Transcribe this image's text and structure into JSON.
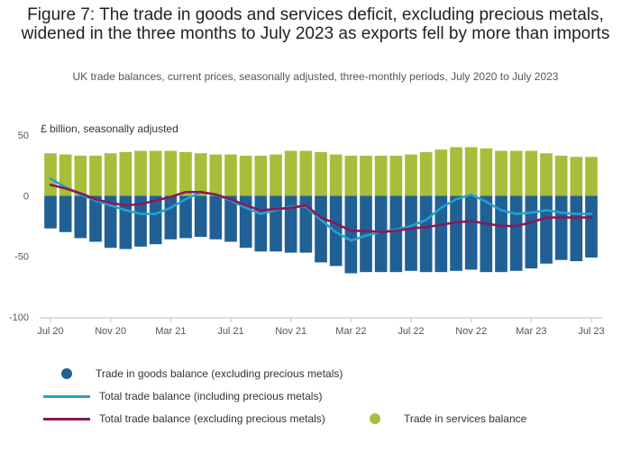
{
  "chart_data": {
    "type": "bar",
    "title": "Figure 7: The trade in goods and services deficit, excluding precious metals, widened in the three months to July 2023 as exports fell by more than imports",
    "subtitle": "UK trade balances, current prices, seasonally adjusted, three-monthly periods, July 2020 to July 2023",
    "ylabel": "£ billion, seasonally adjusted",
    "ylim": [
      -100,
      50
    ],
    "yticks": [
      50,
      0,
      -50,
      -100
    ],
    "x_tick_labels": [
      "Jul 20",
      "Nov 20",
      "Mar 21",
      "Jul 21",
      "Nov 21",
      "Mar 22",
      "Jul 22",
      "Nov 22",
      "Mar 23",
      "Jul 23"
    ],
    "x_tick_positions": [
      0,
      4,
      8,
      12,
      16,
      20,
      24,
      28,
      32,
      36
    ],
    "categories": [
      "Jul 20",
      "Aug 20",
      "Sep 20",
      "Oct 20",
      "Nov 20",
      "Dec 20",
      "Jan 21",
      "Feb 21",
      "Mar 21",
      "Apr 21",
      "May 21",
      "Jun 21",
      "Jul 21",
      "Aug 21",
      "Sep 21",
      "Oct 21",
      "Nov 21",
      "Dec 21",
      "Jan 22",
      "Feb 22",
      "Mar 22",
      "Apr 22",
      "May 22",
      "Jun 22",
      "Jul 22",
      "Aug 22",
      "Sep 22",
      "Oct 22",
      "Nov 22",
      "Dec 22",
      "Jan 23",
      "Feb 23",
      "Mar 23",
      "Apr 23",
      "May 23",
      "Jun 23",
      "Jul 23"
    ],
    "grid": false,
    "legend_position": "bottom",
    "series": [
      {
        "name": "Trade in goods balance (excluding precious metals)",
        "kind": "bar",
        "color": "#206095",
        "values": [
          -27,
          -30,
          -35,
          -38,
          -43,
          -44,
          -42,
          -40,
          -36,
          -35,
          -34,
          -36,
          -38,
          -43,
          -46,
          -46,
          -47,
          -47,
          -55,
          -58,
          -64,
          -63,
          -63,
          -63,
          -62,
          -63,
          -63,
          -62,
          -61,
          -63,
          -63,
          -62,
          -60,
          -56,
          -53,
          -54,
          -51
        ]
      },
      {
        "name": "Trade in services balance",
        "kind": "bar",
        "color": "#a8bd3a",
        "values": [
          35,
          34,
          33,
          33,
          35,
          36,
          37,
          37,
          37,
          36,
          35,
          34,
          34,
          33,
          33,
          34,
          37,
          37,
          36,
          34,
          33,
          33,
          33,
          33,
          34,
          36,
          38,
          40,
          40,
          39,
          37,
          37,
          37,
          35,
          33,
          32,
          32
        ]
      },
      {
        "name": "Total trade balance (including precious metals)",
        "kind": "line",
        "color": "#27a0cc",
        "values": [
          14,
          7,
          1,
          -4,
          -8,
          -12,
          -15,
          -15,
          -10,
          -3,
          3,
          1,
          -4,
          -10,
          -15,
          -12,
          -9,
          -9,
          -20,
          -30,
          -37,
          -33,
          -30,
          -28,
          -25,
          -20,
          -10,
          -3,
          1,
          -5,
          -12,
          -15,
          -14,
          -12,
          -14,
          -15,
          -15
        ]
      },
      {
        "name": "Total trade balance (excluding precious metals)",
        "kind": "line",
        "color": "#871a5b",
        "values": [
          9,
          6,
          2,
          -3,
          -6,
          -8,
          -7,
          -4,
          -1,
          3,
          3,
          1,
          -3,
          -8,
          -12,
          -11,
          -10,
          -8,
          -18,
          -23,
          -29,
          -29,
          -30,
          -29,
          -27,
          -26,
          -24,
          -22,
          -21,
          -23,
          -25,
          -25,
          -22,
          -18,
          -18,
          -18,
          -18
        ]
      }
    ]
  },
  "legend": [
    {
      "label": "Trade in goods balance (excluding precious metals)",
      "icon": "dot",
      "color": "#206095"
    },
    {
      "label": "Total trade balance (including precious metals)",
      "icon": "line",
      "color": "#27a0cc"
    },
    {
      "label": "Total trade balance (excluding precious metals)",
      "icon": "line",
      "color": "#871a5b"
    },
    {
      "label": "Trade in services balance",
      "icon": "dot",
      "color": "#a8bd3a"
    }
  ]
}
